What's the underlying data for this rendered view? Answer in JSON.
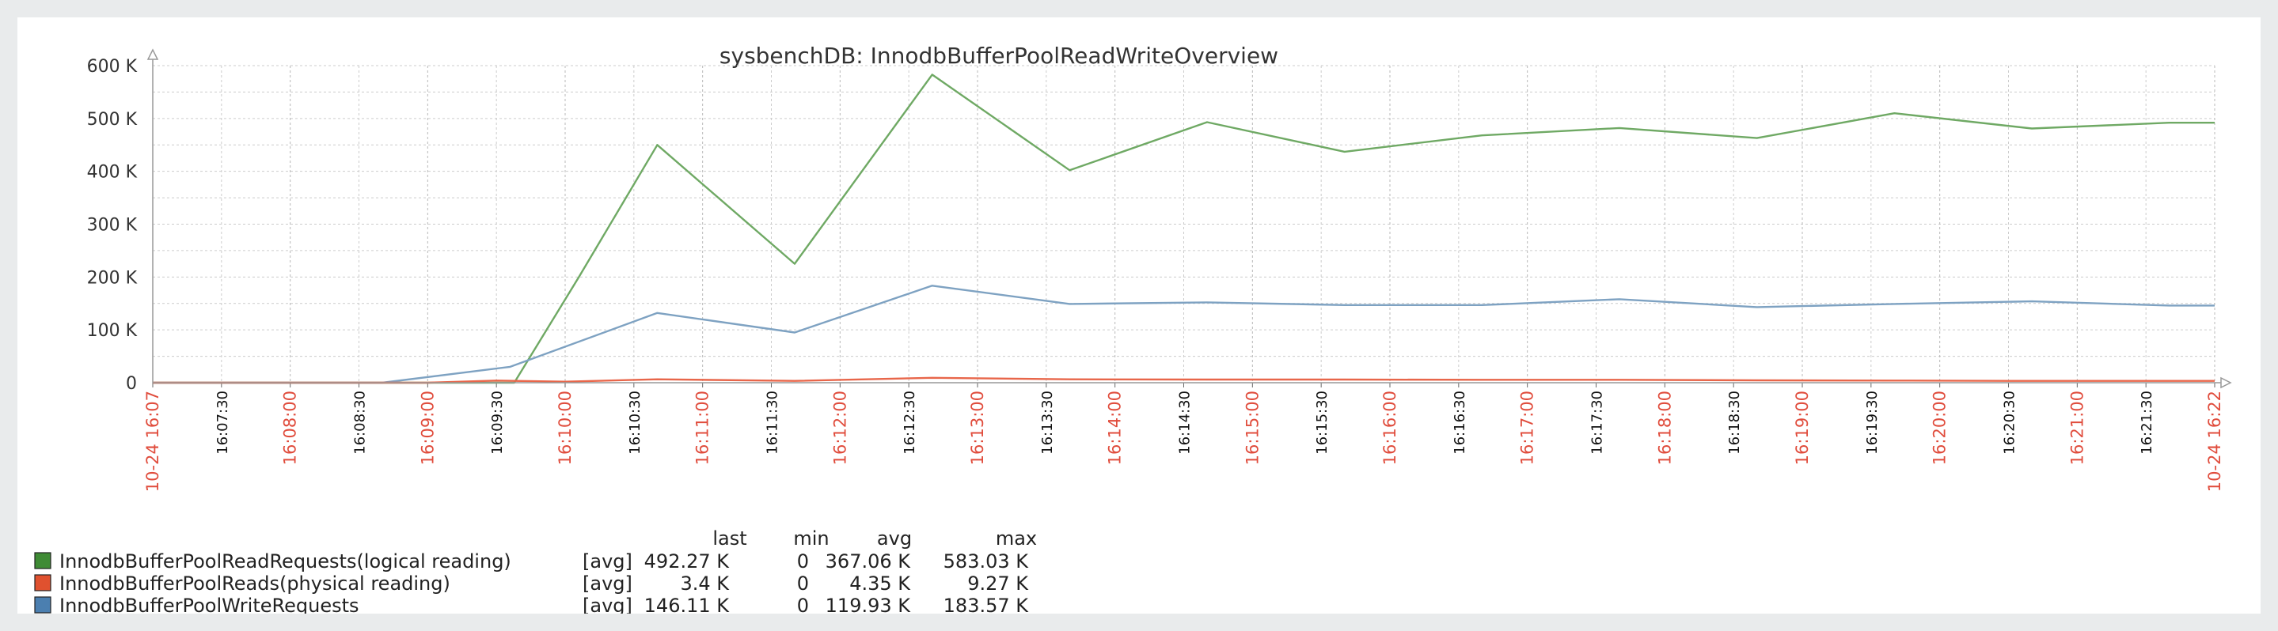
{
  "chart_data": {
    "type": "line",
    "title": "sysbenchDB: InnodbBufferPoolReadWriteOverview",
    "ylim": [
      0,
      600000
    ],
    "y_ticks": [
      {
        "value": 0,
        "label": "0"
      },
      {
        "value": 100000,
        "label": "100 K"
      },
      {
        "value": 200000,
        "label": "200 K"
      },
      {
        "value": 300000,
        "label": "300 K"
      },
      {
        "value": 400000,
        "label": "400 K"
      },
      {
        "value": 500000,
        "label": "500 K"
      },
      {
        "value": 600000,
        "label": "600 K"
      }
    ],
    "x_start_min": 0,
    "x_end_min": 15,
    "x_ticks": [
      {
        "t": 0,
        "label": "10-24 16:07",
        "major": true
      },
      {
        "t": 0.5,
        "label": "16:07:30",
        "major": false
      },
      {
        "t": 1,
        "label": "16:08:00",
        "major": true
      },
      {
        "t": 1.5,
        "label": "16:08:30",
        "major": false
      },
      {
        "t": 2,
        "label": "16:09:00",
        "major": true
      },
      {
        "t": 2.5,
        "label": "16:09:30",
        "major": false
      },
      {
        "t": 3,
        "label": "16:10:00",
        "major": true
      },
      {
        "t": 3.5,
        "label": "16:10:30",
        "major": false
      },
      {
        "t": 4,
        "label": "16:11:00",
        "major": true
      },
      {
        "t": 4.5,
        "label": "16:11:30",
        "major": false
      },
      {
        "t": 5,
        "label": "16:12:00",
        "major": true
      },
      {
        "t": 5.5,
        "label": "16:12:30",
        "major": false
      },
      {
        "t": 6,
        "label": "16:13:00",
        "major": true
      },
      {
        "t": 6.5,
        "label": "16:13:30",
        "major": false
      },
      {
        "t": 7,
        "label": "16:14:00",
        "major": true
      },
      {
        "t": 7.5,
        "label": "16:14:30",
        "major": false
      },
      {
        "t": 8,
        "label": "16:15:00",
        "major": true
      },
      {
        "t": 8.5,
        "label": "16:15:30",
        "major": false
      },
      {
        "t": 9,
        "label": "16:16:00",
        "major": true
      },
      {
        "t": 9.5,
        "label": "16:16:30",
        "major": false
      },
      {
        "t": 10,
        "label": "16:17:00",
        "major": true
      },
      {
        "t": 10.5,
        "label": "16:17:30",
        "major": false
      },
      {
        "t": 11,
        "label": "16:18:00",
        "major": true
      },
      {
        "t": 11.5,
        "label": "16:18:30",
        "major": false
      },
      {
        "t": 12,
        "label": "16:19:00",
        "major": true
      },
      {
        "t": 12.5,
        "label": "16:19:30",
        "major": false
      },
      {
        "t": 13,
        "label": "16:20:00",
        "major": true
      },
      {
        "t": 13.5,
        "label": "16:20:30",
        "major": false
      },
      {
        "t": 14,
        "label": "16:21:00",
        "major": true
      },
      {
        "t": 14.5,
        "label": "16:21:30",
        "major": false
      },
      {
        "t": 15,
        "label": "10-24 16:22",
        "major": true
      }
    ],
    "series": [
      {
        "name": "InnodbBufferPoolReadRequests(logical reading)",
        "color": "#6fa964",
        "swatch": "#3f8b35",
        "func": "[avg]",
        "last": "492.27 K",
        "min": "0",
        "avg": "367.06 K",
        "max": "583.03 K",
        "points": [
          [
            0,
            0
          ],
          [
            2.63,
            0
          ],
          [
            3.1,
            200000
          ],
          [
            3.67,
            450000
          ],
          [
            4.67,
            225000
          ],
          [
            5.67,
            583000
          ],
          [
            6.67,
            402000
          ],
          [
            7.67,
            493000
          ],
          [
            8.67,
            437000
          ],
          [
            9.67,
            468000
          ],
          [
            10.67,
            482000
          ],
          [
            11.67,
            463000
          ],
          [
            12.67,
            510000
          ],
          [
            13.67,
            481000
          ],
          [
            14.67,
            492000
          ],
          [
            15,
            492000
          ]
        ]
      },
      {
        "name": "InnodbBufferPoolReads(physical reading)",
        "color": "#e8664a",
        "swatch": "#e0512f",
        "func": "[avg]",
        "last": "3.4 K",
        "min": "0",
        "avg": "4.35 K",
        "max": "9.27 K",
        "points": [
          [
            0,
            0
          ],
          [
            2.0,
            0
          ],
          [
            2.5,
            4000
          ],
          [
            3.0,
            2000
          ],
          [
            3.67,
            6500
          ],
          [
            4.67,
            3500
          ],
          [
            5.67,
            9270
          ],
          [
            6.67,
            6500
          ],
          [
            7.67,
            6000
          ],
          [
            8.67,
            6000
          ],
          [
            9.67,
            5500
          ],
          [
            10.67,
            5500
          ],
          [
            11.67,
            4500
          ],
          [
            12.67,
            4000
          ],
          [
            13.67,
            3500
          ],
          [
            14.67,
            3400
          ],
          [
            15,
            3400
          ]
        ]
      },
      {
        "name": "InnodbBufferPoolWriteRequests",
        "color": "#7ea2c2",
        "swatch": "#4b7fb0",
        "func": "[avg]",
        "last": "146.11 K",
        "min": "0",
        "avg": "119.93 K",
        "max": "183.57 K",
        "points": [
          [
            0,
            0
          ],
          [
            1.67,
            0
          ],
          [
            2.6,
            30000
          ],
          [
            3.67,
            132000
          ],
          [
            4.67,
            95000
          ],
          [
            5.67,
            183570
          ],
          [
            6.67,
            149000
          ],
          [
            7.67,
            152000
          ],
          [
            8.67,
            147000
          ],
          [
            9.67,
            147000
          ],
          [
            10.67,
            158000
          ],
          [
            11.67,
            143000
          ],
          [
            12.67,
            149000
          ],
          [
            13.67,
            154000
          ],
          [
            14.67,
            146000
          ],
          [
            15,
            146000
          ]
        ]
      }
    ],
    "legend_headers": {
      "last": "last",
      "min": "min",
      "avg": "avg",
      "max": "max"
    },
    "colors": {
      "major_tick": "#e04c3c",
      "minor_tick": "#111111",
      "grid": "#cccccc"
    }
  }
}
